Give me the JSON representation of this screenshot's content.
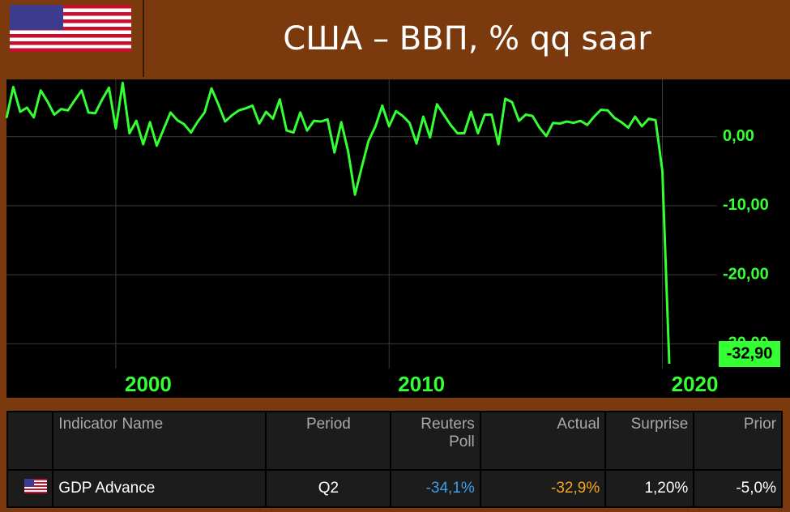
{
  "header": {
    "title": "США – ВВП, % qq saar"
  },
  "chart_data": {
    "type": "line",
    "color": "#33ff33",
    "grid": true,
    "x": [
      1996,
      1996.25,
      1996.5,
      1996.75,
      1997,
      1997.25,
      1997.5,
      1997.75,
      1998,
      1998.25,
      1998.5,
      1998.75,
      1999,
      1999.25,
      1999.5,
      1999.75,
      2000,
      2000.25,
      2000.5,
      2000.75,
      2001,
      2001.25,
      2001.5,
      2001.75,
      2002,
      2002.25,
      2002.5,
      2002.75,
      2003,
      2003.25,
      2003.5,
      2003.75,
      2004,
      2004.25,
      2004.5,
      2004.75,
      2005,
      2005.25,
      2005.5,
      2005.75,
      2006,
      2006.25,
      2006.5,
      2006.75,
      2007,
      2007.25,
      2007.5,
      2007.75,
      2008,
      2008.25,
      2008.5,
      2008.75,
      2009,
      2009.25,
      2009.5,
      2009.75,
      2010,
      2010.25,
      2010.5,
      2010.75,
      2011,
      2011.25,
      2011.5,
      2011.75,
      2012,
      2012.25,
      2012.5,
      2012.75,
      2013,
      2013.25,
      2013.5,
      2013.75,
      2014,
      2014.25,
      2014.5,
      2014.75,
      2015,
      2015.25,
      2015.5,
      2015.75,
      2016,
      2016.25,
      2016.5,
      2016.75,
      2017,
      2017.25,
      2017.5,
      2017.75,
      2018,
      2018.25,
      2018.5,
      2018.75,
      2019,
      2019.25,
      2019.5,
      2019.75,
      2020,
      2020.25
    ],
    "values": [
      2.7,
      7.2,
      3.6,
      4.2,
      2.8,
      6.7,
      5.1,
      3.2,
      4.0,
      3.8,
      5.3,
      6.7,
      3.5,
      3.4,
      5.4,
      7.1,
      1.2,
      7.8,
      0.5,
      2.3,
      -1.1,
      2.1,
      -1.3,
      1.1,
      3.5,
      2.4,
      1.8,
      0.6,
      2.2,
      3.5,
      7.0,
      4.7,
      2.2,
      3.1,
      3.8,
      4.1,
      4.5,
      1.9,
      3.6,
      2.6,
      5.4,
      0.9,
      0.6,
      3.5,
      0.9,
      2.3,
      2.2,
      2.5,
      -2.3,
      2.1,
      -2.1,
      -8.4,
      -4.4,
      -0.6,
      1.5,
      4.5,
      1.5,
      3.7,
      3.0,
      2.0,
      -1.0,
      2.9,
      -0.1,
      4.7,
      3.2,
      1.7,
      0.5,
      0.5,
      3.6,
      0.5,
      3.2,
      3.2,
      -1.1,
      5.5,
      5.0,
      2.3,
      3.2,
      3.0,
      1.3,
      0.1,
      2.0,
      1.9,
      2.2,
      2.0,
      2.3,
      1.7,
      2.9,
      3.9,
      3.8,
      2.7,
      2.1,
      1.3,
      2.9,
      1.5,
      2.6,
      2.4,
      -5.0,
      -32.9
    ],
    "value_labels": [
      null,
      null,
      null,
      null,
      null,
      null,
      null,
      null,
      null,
      null,
      null,
      null,
      null,
      null,
      null,
      null,
      null,
      null,
      null,
      null,
      null,
      null,
      null,
      null,
      null,
      null,
      null,
      null,
      null,
      null,
      null,
      null,
      null,
      null,
      null,
      null,
      null,
      null,
      null,
      null,
      null,
      null,
      null,
      null,
      null,
      null,
      null,
      null,
      null,
      null,
      null,
      null,
      null,
      null,
      null,
      null,
      null,
      null,
      null,
      null,
      null,
      null,
      null,
      null,
      null,
      null,
      null,
      null,
      null,
      null,
      null,
      null,
      null,
      null,
      null,
      null,
      null,
      null,
      null,
      null,
      null,
      null,
      null,
      null,
      null,
      null,
      null,
      null,
      null,
      null,
      null,
      null,
      null,
      null,
      null,
      null,
      null,
      "-32,90"
    ],
    "xlim": [
      1996,
      2022
    ],
    "xticks": [
      2000,
      2010,
      2020
    ],
    "ylim": [
      -33.6,
      8.3
    ],
    "yticks": [
      {
        "value": 0,
        "label": "0,00"
      },
      {
        "value": -10,
        "label": "-10,00"
      },
      {
        "value": -20,
        "label": "-20,00"
      },
      {
        "value": -30,
        "label": "-30,00"
      }
    ]
  },
  "table": {
    "headers": [
      "Indicator Name",
      "Period",
      "Reuters Poll",
      "Actual",
      "Surprise",
      "Prior"
    ],
    "rows": [
      [
        "GDP Advance",
        "Q2",
        "-34,1%",
        "-32,9%",
        "1,20%",
        "-5,0%"
      ]
    ]
  }
}
